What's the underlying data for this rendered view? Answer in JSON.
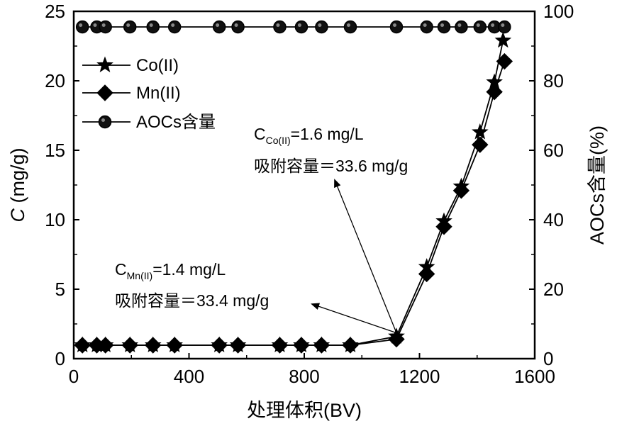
{
  "chart_data": {
    "type": "line",
    "xlabel": "处理体积(BV)",
    "ylabel_left": "C (mg/g)",
    "ylabel_left_italic": "C",
    "ylabel_left_rest": " (mg/g)",
    "ylabel_right": "AOCs含量(%)",
    "xlim": [
      0,
      1600
    ],
    "ylim_left": [
      0,
      25
    ],
    "ylim_right": [
      0,
      100
    ],
    "xticks": [
      "0",
      "400",
      "800",
      "1200",
      "1600"
    ],
    "yticks_left": [
      "0",
      "5",
      "10",
      "15",
      "20",
      "25"
    ],
    "yticks_right": [
      "0",
      "20",
      "40",
      "60",
      "80",
      "100"
    ],
    "legend_position": "upper-left",
    "series": [
      {
        "name": "Co(II)",
        "marker": "star",
        "axis": "left",
        "x": [
          30,
          80,
          110,
          195,
          275,
          350,
          505,
          570,
          715,
          790,
          860,
          960,
          1120,
          1225,
          1285,
          1345,
          1410,
          1460,
          1490
        ],
        "y": [
          0,
          0,
          0,
          0,
          0,
          0,
          0,
          0,
          0,
          0,
          0,
          0,
          1.6,
          6.6,
          9.9,
          12.4,
          16.3,
          19.9,
          22.9
        ]
      },
      {
        "name": "Mn(II)",
        "marker": "diamond",
        "axis": "left",
        "x": [
          30,
          80,
          110,
          195,
          275,
          350,
          505,
          570,
          715,
          790,
          860,
          960,
          1120,
          1225,
          1285,
          1345,
          1410,
          1460,
          1495
        ],
        "y": [
          0,
          0,
          0,
          0,
          0,
          0,
          0,
          0,
          0,
          0,
          0,
          0,
          1.4,
          6.1,
          9.5,
          12.1,
          15.4,
          19.2,
          21.4
        ]
      },
      {
        "name": "AOCs含量",
        "marker": "circle",
        "axis": "right",
        "x": [
          30,
          80,
          110,
          195,
          275,
          350,
          505,
          570,
          715,
          790,
          860,
          960,
          1120,
          1225,
          1285,
          1345,
          1410,
          1460,
          1495
        ],
        "y": [
          100,
          100,
          100,
          100,
          100,
          100,
          100,
          100,
          100,
          100,
          100,
          100,
          100,
          100,
          100,
          100,
          100,
          100,
          100
        ]
      }
    ],
    "annotations": [
      {
        "id": "co",
        "sub": "Co(II)",
        "line1_rest": "=1.6 mg/L",
        "line2": "吸附容量＝33.6 mg/g",
        "arrow_from": [
          1120,
          1.5
        ],
        "arrow_to": [
          935,
          12.6
        ]
      },
      {
        "id": "mn",
        "sub": "Mn(II)",
        "line1_rest": "=1.4 mg/L",
        "line2": "吸附容量＝33.4 mg/g",
        "arrow_from": [
          1120,
          1.5
        ],
        "arrow_to": [
          825,
          3.0
        ]
      }
    ]
  }
}
